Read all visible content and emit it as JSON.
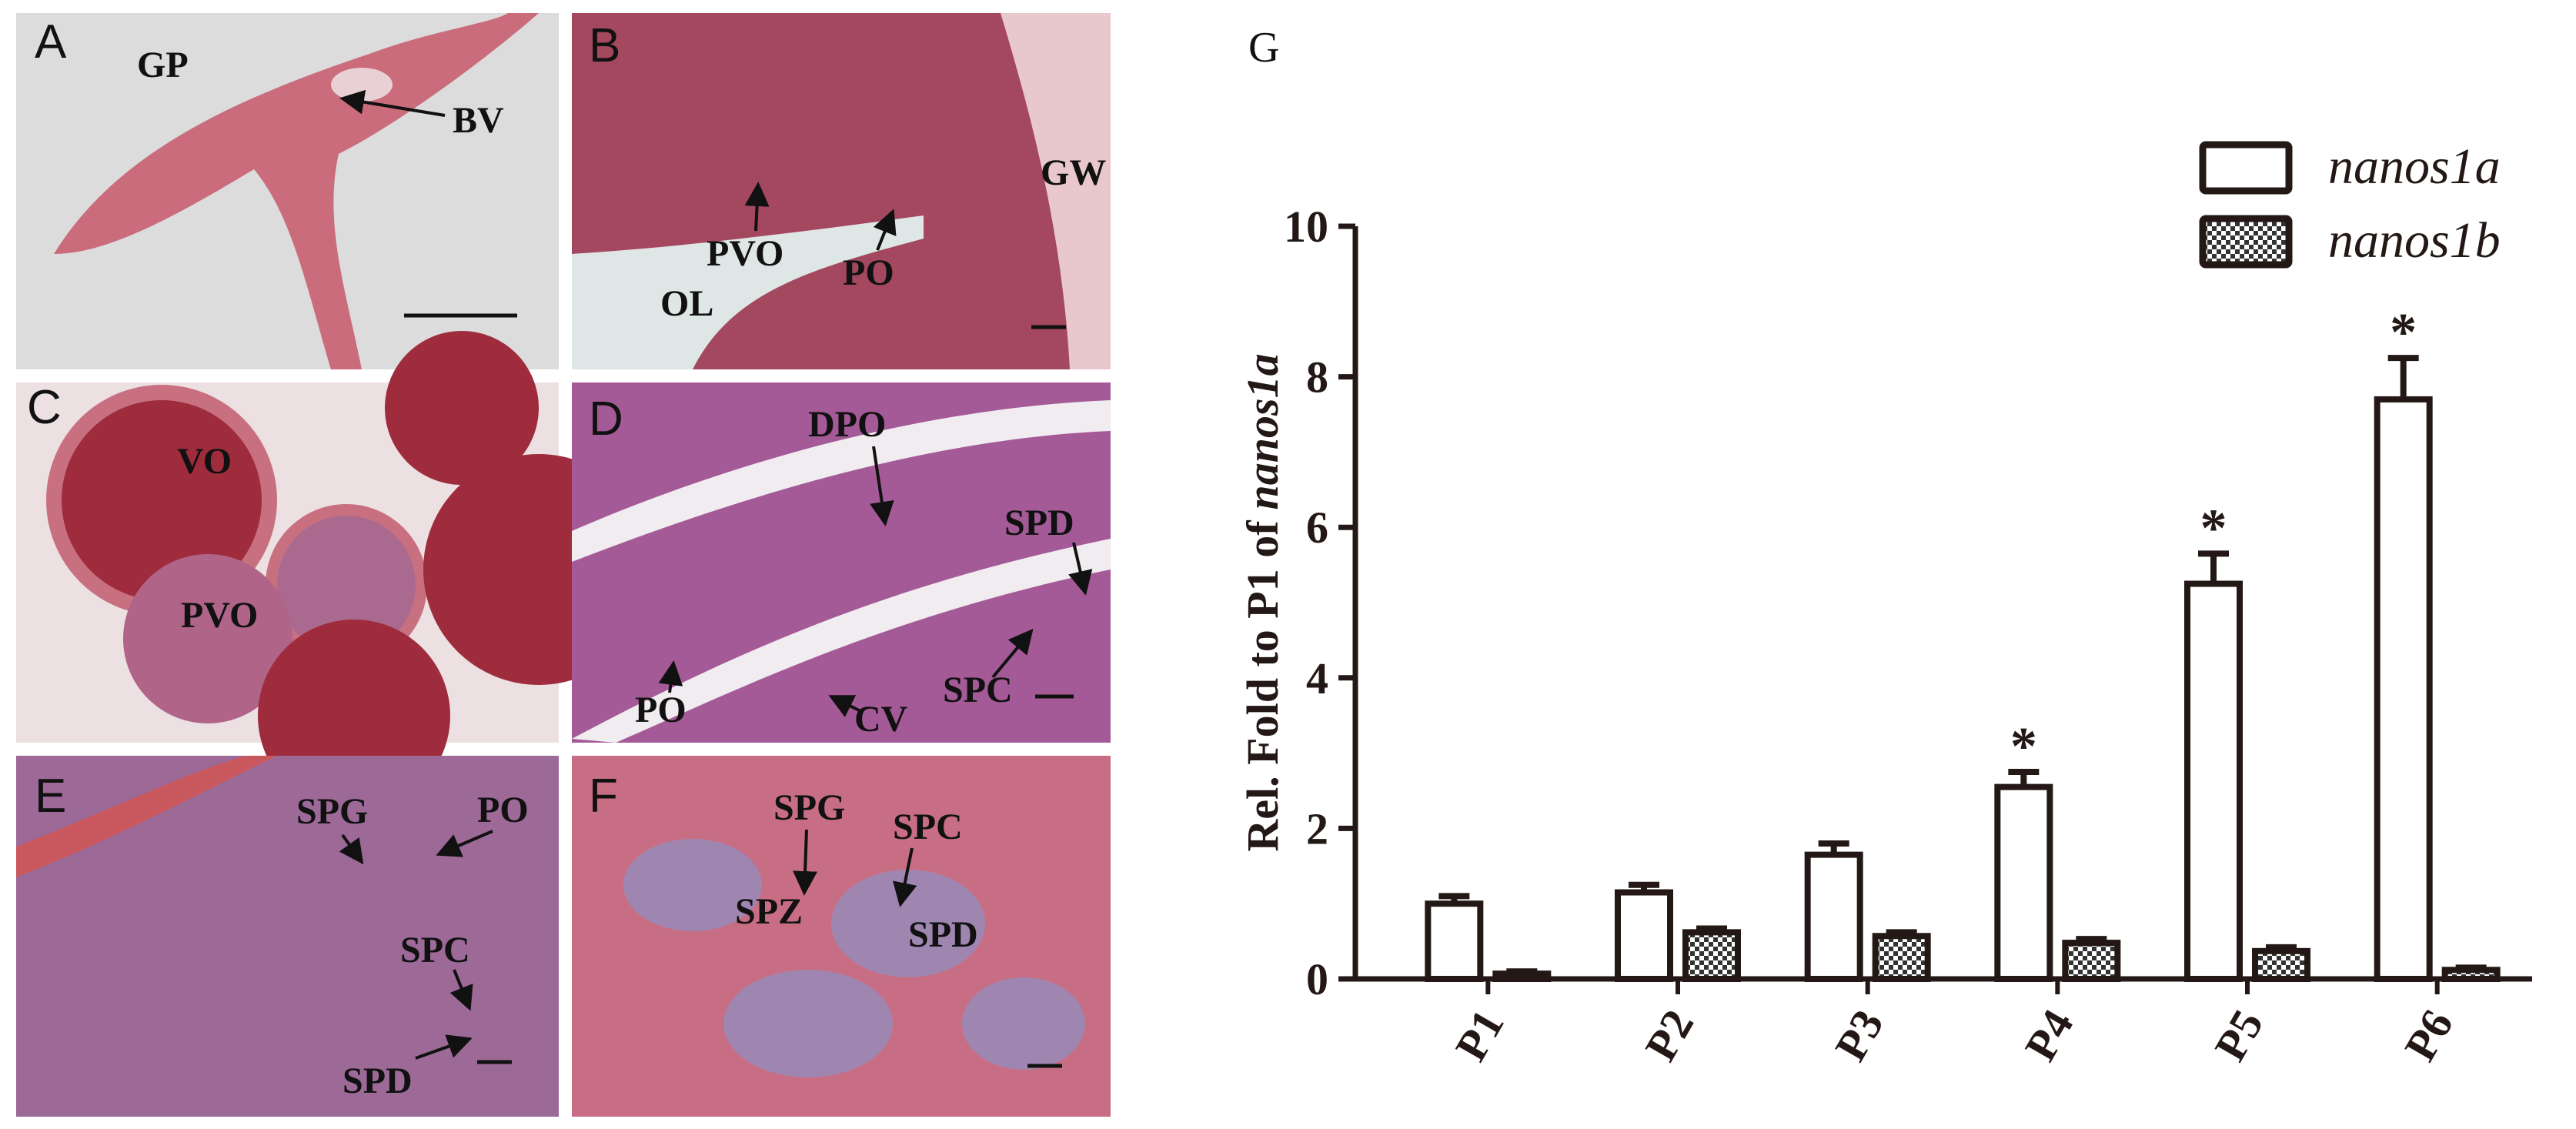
{
  "panels": [
    {
      "letter": "A",
      "labels": [
        "GP",
        "BV"
      ]
    },
    {
      "letter": "B",
      "labels": [
        "GW",
        "PVO",
        "PO",
        "OL"
      ]
    },
    {
      "letter": "C",
      "labels": [
        "VO",
        "PVO"
      ]
    },
    {
      "letter": "D",
      "labels": [
        "DPO",
        "SPD",
        "PO",
        "CV",
        "SPC"
      ]
    },
    {
      "letter": "E",
      "labels": [
        "SPG",
        "PO",
        "SPC",
        "SPD"
      ]
    },
    {
      "letter": "F",
      "labels": [
        "SPG",
        "SPC",
        "SPZ",
        "SPD"
      ]
    }
  ],
  "chart_data": {
    "type": "bar",
    "panel_label": "G",
    "y_label": {
      "text": "Rel. Fold to P1 of",
      "italic": "nanos1a"
    },
    "categories": [
      "P1",
      "P2",
      "P3",
      "P4",
      "P5",
      "P6"
    ],
    "series": [
      {
        "name": "nanos1a",
        "color": "#231815",
        "fill": "white",
        "values": [
          1.0,
          1.15,
          1.65,
          2.55,
          5.25,
          7.7
        ],
        "errors": [
          0.1,
          0.1,
          0.15,
          0.2,
          0.4,
          0.55
        ],
        "annotations": [
          null,
          null,
          null,
          "*",
          "*",
          "*"
        ]
      },
      {
        "name": "nanos1b",
        "color": "#231815",
        "fill": "checker",
        "values": [
          0.07,
          0.62,
          0.57,
          0.48,
          0.37,
          0.12
        ],
        "errors": [
          0.03,
          0.05,
          0.05,
          0.05,
          0.05,
          0.03
        ]
      }
    ],
    "ylim": [
      0,
      10
    ],
    "yticks": [
      0,
      2,
      4,
      6,
      8,
      10
    ]
  }
}
